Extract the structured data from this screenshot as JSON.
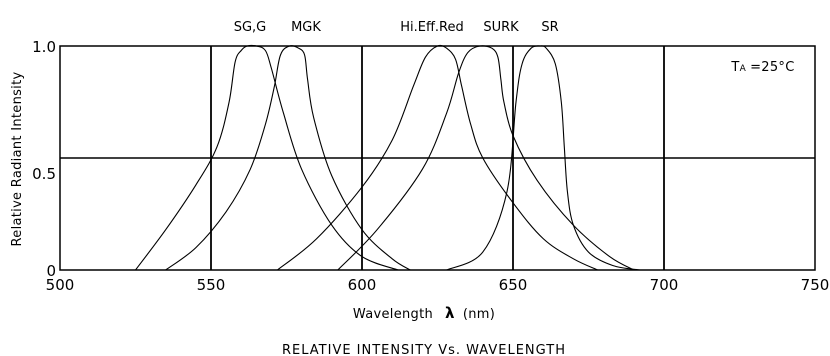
{
  "chart_data": {
    "type": "line",
    "title": "",
    "caption": "RELATIVE INTENSITY Vs. WAVELENGTH",
    "xlabel": "Wavelength",
    "xlabel_symbol": "λ",
    "xlabel_unit": "(nm)",
    "ylabel": "Relative Radiant Intensity",
    "xlim": [
      500,
      750
    ],
    "ylim": [
      0,
      1.0
    ],
    "x_ticks": [
      "500",
      "550",
      "600",
      "650",
      "700",
      "750"
    ],
    "y_ticks": [
      "0",
      "0.5",
      "1.0"
    ],
    "grid": true,
    "annotation_main": "T",
    "annotation_sub": "A",
    "annotation_value": "=25°C",
    "series": [
      {
        "name": "SG,G",
        "x": [
          525,
          535,
          545,
          552,
          556,
          558,
          560,
          562,
          565,
          568,
          570,
          574,
          580,
          590,
          600,
          612
        ],
        "y": [
          0.0,
          0.18,
          0.38,
          0.55,
          0.75,
          0.93,
          0.98,
          1.0,
          1.0,
          0.98,
          0.9,
          0.7,
          0.45,
          0.2,
          0.06,
          0.0
        ]
      },
      {
        "name": "MGK",
        "x": [
          535,
          545,
          555,
          563,
          568,
          571,
          573,
          576,
          579,
          581,
          582,
          584,
          590,
          600,
          610,
          616
        ],
        "y": [
          0.0,
          0.1,
          0.26,
          0.45,
          0.65,
          0.82,
          0.96,
          1.0,
          0.99,
          0.96,
          0.85,
          0.68,
          0.42,
          0.18,
          0.05,
          0.0
        ]
      },
      {
        "name": "Hi.Eff.Red",
        "x": [
          572,
          585,
          600,
          610,
          617,
          621,
          625,
          628,
          631,
          633,
          636,
          640,
          650,
          660,
          670,
          678
        ],
        "y": [
          0.0,
          0.14,
          0.37,
          0.58,
          0.82,
          0.95,
          1.0,
          0.99,
          0.94,
          0.82,
          0.65,
          0.5,
          0.3,
          0.14,
          0.05,
          0.0
        ]
      },
      {
        "name": "SURK",
        "x": [
          592,
          605,
          620,
          628,
          632,
          635,
          639,
          643,
          645,
          646,
          647,
          650,
          658,
          670,
          682,
          690
        ],
        "y": [
          0.0,
          0.18,
          0.45,
          0.7,
          0.88,
          0.97,
          1.0,
          0.99,
          0.95,
          0.85,
          0.75,
          0.6,
          0.4,
          0.2,
          0.06,
          0.0
        ]
      },
      {
        "name": "SR",
        "x": [
          628,
          640,
          648,
          651,
          653,
          656,
          659,
          661,
          664,
          666,
          667,
          668,
          670,
          675,
          683,
          692
        ],
        "y": [
          0.0,
          0.08,
          0.35,
          0.75,
          0.92,
          0.99,
          1.0,
          0.99,
          0.92,
          0.75,
          0.55,
          0.35,
          0.2,
          0.08,
          0.02,
          0.0
        ]
      }
    ]
  }
}
